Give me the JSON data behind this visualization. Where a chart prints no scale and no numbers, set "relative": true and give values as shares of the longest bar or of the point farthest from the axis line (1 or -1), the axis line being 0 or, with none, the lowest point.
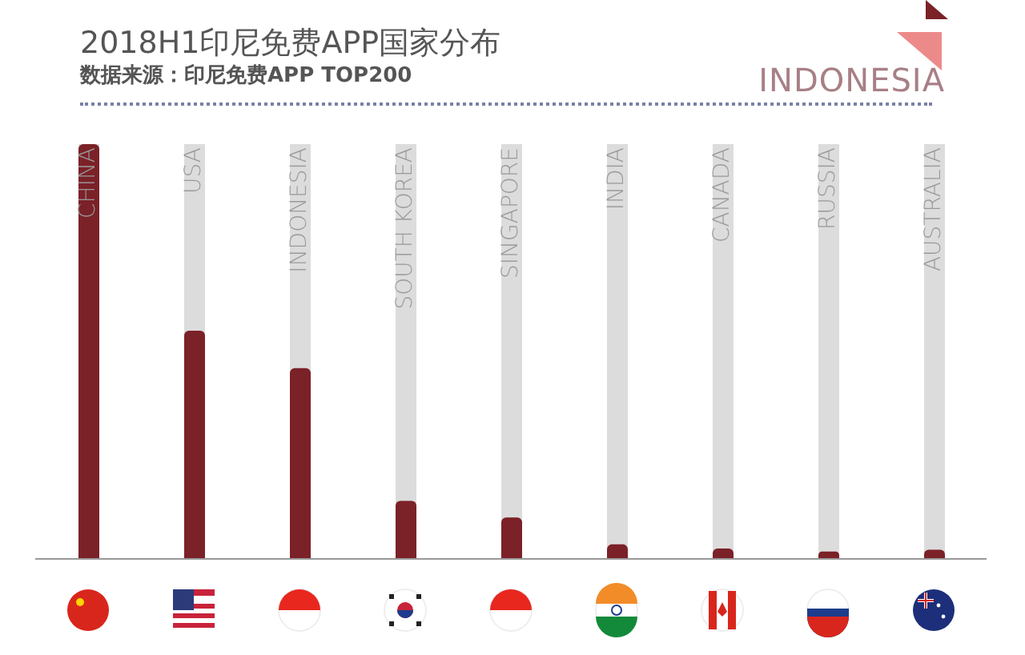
{
  "chart_data": {
    "type": "bar",
    "title": "2018H1印尼免费APP国家分布",
    "subtitle": "数据来源：印尼免费APP TOP200",
    "annotations": [
      "INDONESIA"
    ],
    "categories": [
      "CHINA",
      "USA",
      "INDONESIA",
      "SOUTH KOREA",
      "SINGAPORE",
      "INDIA",
      "CANADA",
      "RUSSIA",
      "AUSTRALIA"
    ],
    "values": [
      1,
      0.55,
      0.46,
      0.14,
      0.1,
      0.035,
      0.025,
      0.018,
      0.022
    ],
    "color": "#7b2128",
    "relative": true
  }
}
